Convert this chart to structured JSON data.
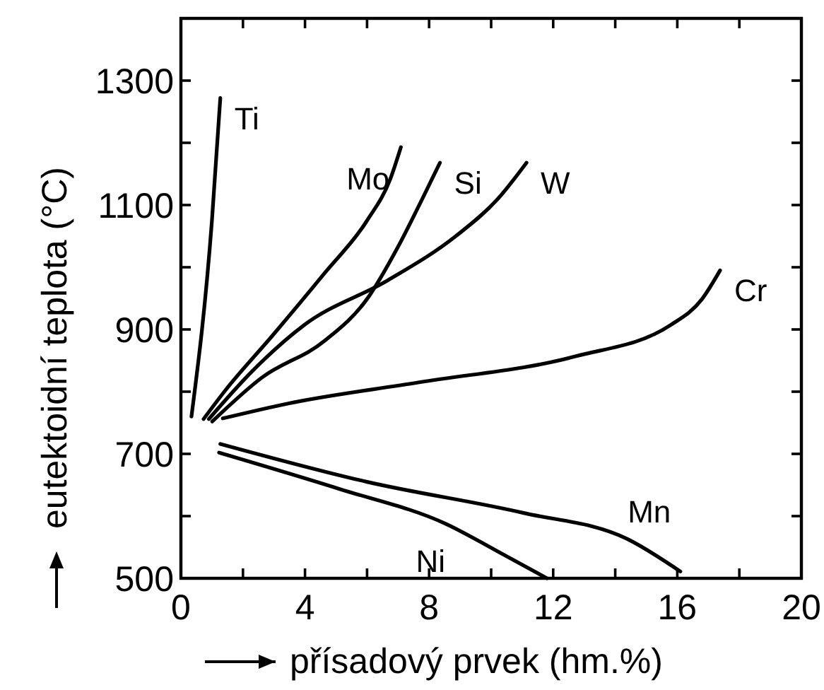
{
  "chart_data": {
    "type": "line",
    "xlabel": "přísadový prvek (hm.%)",
    "ylabel": "eutektoidní teplota (°C)",
    "xlim": [
      0,
      20
    ],
    "xticks": [
      0,
      {
        "value": 2,
        "label": null
      },
      4,
      {
        "value": 6,
        "label": null
      },
      8,
      {
        "value": 10,
        "label": null
      },
      12,
      {
        "value": 14,
        "label": null
      },
      16,
      {
        "value": 18,
        "label": null
      },
      20
    ],
    "ylim": [
      500,
      1400
    ],
    "yticks": [
      500,
      {
        "value": 600,
        "label": null
      },
      700,
      {
        "value": 800,
        "label": null
      },
      900,
      {
        "value": 1000,
        "label": null
      },
      1100,
      {
        "value": 1200,
        "label": null
      },
      1300
    ],
    "grid": false,
    "marker": "none",
    "line_style": "solid",
    "series": [
      {
        "name": "Ti",
        "color": "#000000",
        "x": [
          0.34,
          1.0,
          1.27
        ],
        "values": [
          760,
          1075,
          1272
        ]
      },
      {
        "name": "Mo",
        "color": "#000000",
        "x": [
          0.73,
          1.43,
          2.95,
          4.64,
          6.0,
          6.75,
          7.09
        ],
        "values": [
          756,
          802,
          890,
          991,
          1075,
          1142,
          1193
        ]
      },
      {
        "name": "Si",
        "color": "#000000",
        "x": [
          1.01,
          2.62,
          4.64,
          6.0,
          7.0,
          7.85,
          8.35
        ],
        "values": [
          752,
          823,
          882,
          949,
          1033,
          1117,
          1168
        ]
      },
      {
        "name": "W",
        "color": "#000000",
        "x": [
          0.9,
          2.28,
          3.97,
          6.67,
          8.86,
          10.2,
          11.14
        ],
        "values": [
          756,
          832,
          907,
          979,
          1050,
          1109,
          1168
        ]
      },
      {
        "name": "Cr",
        "color": "#000000",
        "x": [
          1.35,
          3.46,
          7.68,
          12.74,
          15.78,
          16.8,
          17.38
        ],
        "values": [
          757,
          781,
          815,
          857,
          907,
          949,
          995
        ]
      },
      {
        "name": "Mn",
        "color": "#000000",
        "x": [
          1.27,
          6.0,
          11.05,
          14.4,
          16.1
        ],
        "values": [
          716,
          655,
          605,
          563,
          511
        ]
      },
      {
        "name": "Ni",
        "color": "#000000",
        "x": [
          1.23,
          5.15,
          8.52,
          10.4,
          11.8
        ],
        "values": [
          702,
          643,
          588,
          538,
          500
        ]
      }
    ]
  }
}
